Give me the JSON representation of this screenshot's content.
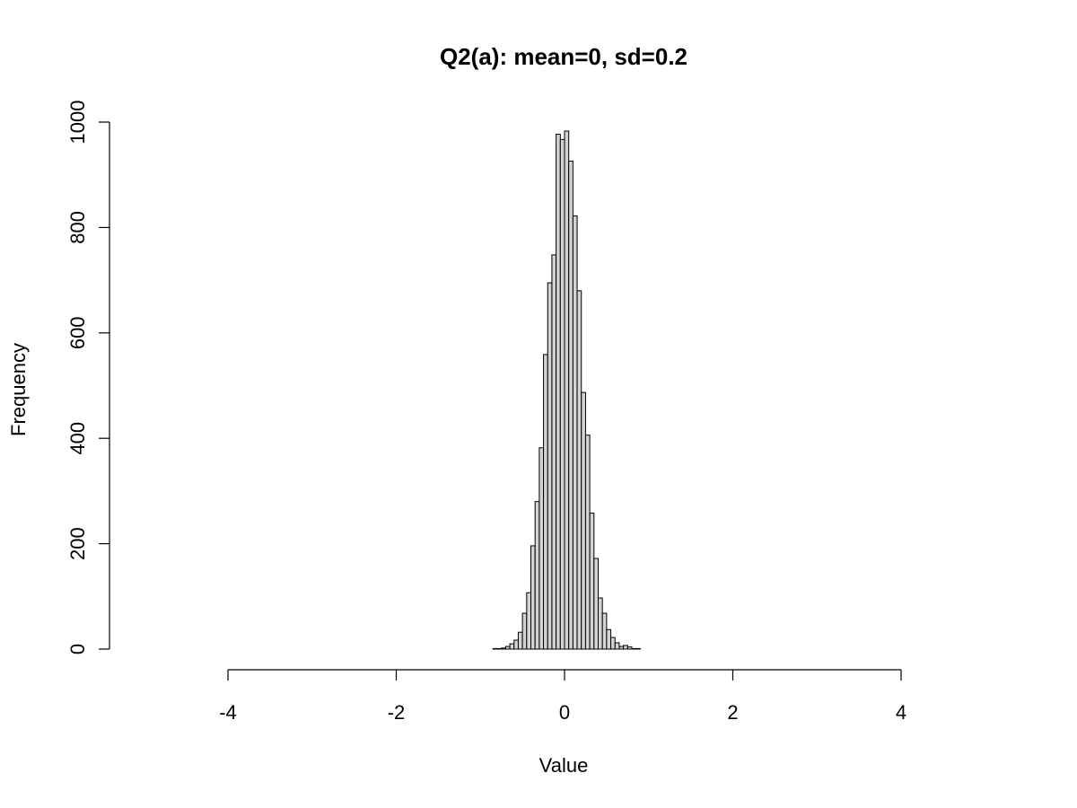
{
  "chart_data": {
    "type": "bar",
    "title": "Q2(a): mean=0, sd=0.2",
    "xlabel": "Value",
    "ylabel": "Frequency",
    "xlim": [
      -4,
      4
    ],
    "ylim": [
      0,
      1000
    ],
    "xticks": [
      "-4",
      "-2",
      "0",
      "2",
      "4"
    ],
    "yticks": [
      "0",
      "200",
      "400",
      "600",
      "800",
      "1000"
    ],
    "grid": false,
    "bar_color": "#d3d3d3",
    "bin_width": 0.05,
    "bins": [
      {
        "x0": -0.85,
        "x1": -0.8,
        "count": 1
      },
      {
        "x0": -0.8,
        "x1": -0.75,
        "count": 1
      },
      {
        "x0": -0.75,
        "x1": -0.7,
        "count": 2
      },
      {
        "x0": -0.7,
        "x1": -0.65,
        "count": 5
      },
      {
        "x0": -0.65,
        "x1": -0.6,
        "count": 10
      },
      {
        "x0": -0.6,
        "x1": -0.55,
        "count": 17
      },
      {
        "x0": -0.55,
        "x1": -0.5,
        "count": 32
      },
      {
        "x0": -0.5,
        "x1": -0.45,
        "count": 68
      },
      {
        "x0": -0.45,
        "x1": -0.4,
        "count": 107
      },
      {
        "x0": -0.4,
        "x1": -0.35,
        "count": 196
      },
      {
        "x0": -0.35,
        "x1": -0.3,
        "count": 280
      },
      {
        "x0": -0.3,
        "x1": -0.25,
        "count": 382
      },
      {
        "x0": -0.25,
        "x1": -0.2,
        "count": 559
      },
      {
        "x0": -0.2,
        "x1": -0.15,
        "count": 695
      },
      {
        "x0": -0.15,
        "x1": -0.1,
        "count": 748
      },
      {
        "x0": -0.1,
        "x1": -0.05,
        "count": 977
      },
      {
        "x0": -0.05,
        "x1": 0.0,
        "count": 967
      },
      {
        "x0": 0.0,
        "x1": 0.05,
        "count": 983
      },
      {
        "x0": 0.05,
        "x1": 0.1,
        "count": 926
      },
      {
        "x0": 0.1,
        "x1": 0.15,
        "count": 822
      },
      {
        "x0": 0.15,
        "x1": 0.2,
        "count": 680
      },
      {
        "x0": 0.2,
        "x1": 0.25,
        "count": 487
      },
      {
        "x0": 0.25,
        "x1": 0.3,
        "count": 406
      },
      {
        "x0": 0.3,
        "x1": 0.35,
        "count": 258
      },
      {
        "x0": 0.35,
        "x1": 0.4,
        "count": 172
      },
      {
        "x0": 0.4,
        "x1": 0.45,
        "count": 97
      },
      {
        "x0": 0.45,
        "x1": 0.5,
        "count": 68
      },
      {
        "x0": 0.5,
        "x1": 0.55,
        "count": 37
      },
      {
        "x0": 0.55,
        "x1": 0.6,
        "count": 22
      },
      {
        "x0": 0.6,
        "x1": 0.65,
        "count": 12
      },
      {
        "x0": 0.65,
        "x1": 0.7,
        "count": 5
      },
      {
        "x0": 0.7,
        "x1": 0.75,
        "count": 7
      },
      {
        "x0": 0.75,
        "x1": 0.8,
        "count": 4
      },
      {
        "x0": 0.8,
        "x1": 0.85,
        "count": 1
      },
      {
        "x0": 0.85,
        "x1": 0.9,
        "count": 1
      }
    ]
  }
}
